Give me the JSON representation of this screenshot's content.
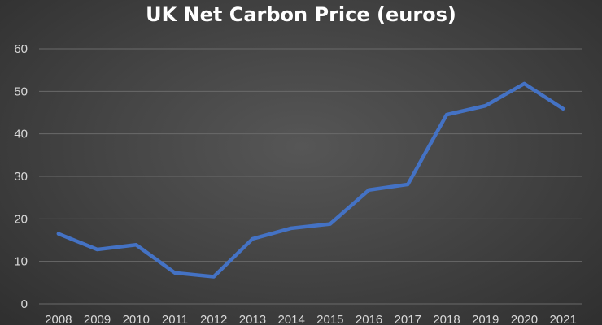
{
  "chart_data": {
    "type": "line",
    "title": "UK Net Carbon Price (euros)",
    "xlabel": "",
    "ylabel": "",
    "categories": [
      "2008",
      "2009",
      "2010",
      "2011",
      "2012",
      "2013",
      "2014",
      "2015",
      "2016",
      "2017",
      "2018",
      "2019",
      "2020",
      "2021"
    ],
    "series": [
      {
        "values": [
          16.5,
          12.8,
          13.9,
          7.3,
          6.4,
          15.3,
          17.8,
          18.8,
          26.8,
          28.1,
          44.5,
          46.6,
          51.8,
          45.9
        ]
      }
    ],
    "ylim": [
      0,
      60
    ],
    "yticks": [
      0,
      10,
      20,
      30,
      40,
      50,
      60
    ],
    "grid": true,
    "legend": "none",
    "colors": {
      "line": "#4472c4",
      "background": "#404040",
      "grid": "#6a6a6a",
      "text": "#d9d9d9",
      "title": "#ffffff"
    }
  }
}
